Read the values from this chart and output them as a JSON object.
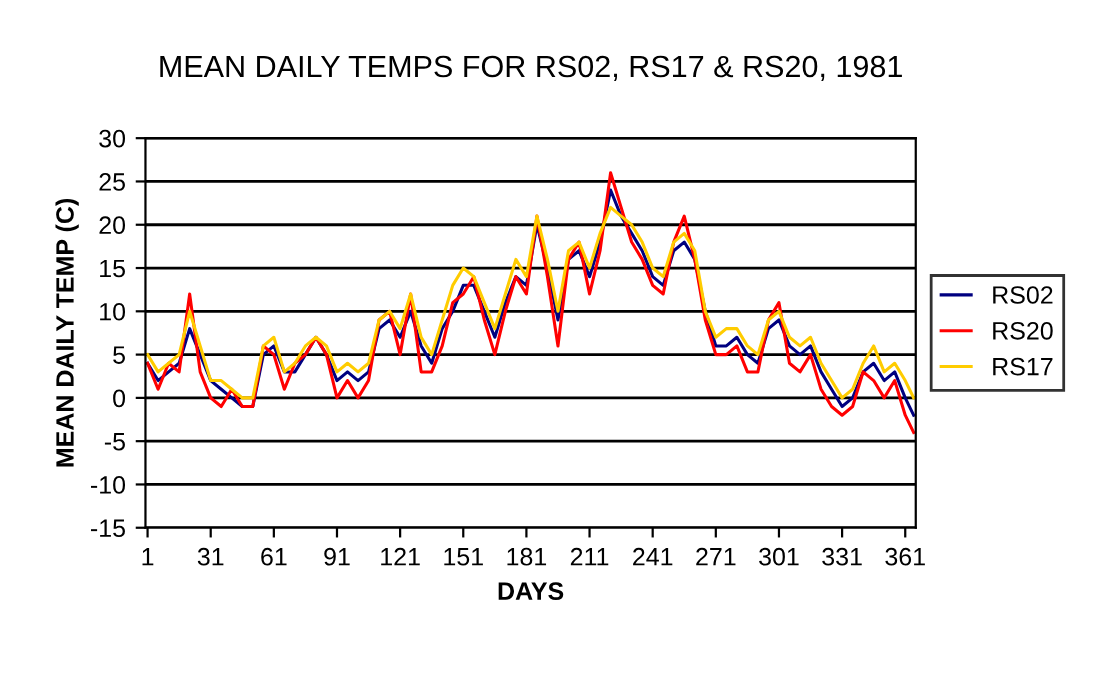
{
  "chart_data": {
    "type": "line",
    "title": "MEAN DAILY TEMPS FOR RS02, RS17 & RS20, 1981",
    "xlabel": "DAYS",
    "ylabel": "MEAN DAILY TEMP (C)",
    "x": [
      1,
      6,
      11,
      16,
      21,
      26,
      31,
      36,
      41,
      46,
      51,
      56,
      61,
      66,
      71,
      76,
      81,
      86,
      91,
      96,
      101,
      106,
      111,
      116,
      121,
      126,
      131,
      136,
      141,
      146,
      151,
      156,
      161,
      166,
      171,
      176,
      181,
      186,
      191,
      196,
      201,
      206,
      211,
      216,
      221,
      226,
      231,
      236,
      241,
      246,
      251,
      256,
      261,
      266,
      271,
      276,
      281,
      286,
      291,
      296,
      301,
      306,
      311,
      316,
      321,
      326,
      331,
      336,
      341,
      346,
      351,
      356,
      361,
      365
    ],
    "series": [
      {
        "name": "RS02",
        "color": "#000080",
        "values": [
          4,
          2,
          3,
          4,
          8,
          5,
          2,
          1,
          0,
          -1,
          -1,
          5,
          6,
          3,
          3,
          5,
          7,
          5,
          2,
          3,
          2,
          3,
          8,
          9,
          7,
          10,
          6,
          4,
          8,
          10,
          13,
          13,
          10,
          7,
          11,
          14,
          13,
          20,
          15,
          9,
          16,
          17,
          14,
          18,
          24,
          21,
          19,
          17,
          14,
          13,
          17,
          18,
          16,
          10,
          6,
          6,
          7,
          5,
          4,
          8,
          9,
          6,
          5,
          6,
          3,
          1,
          -1,
          0,
          3,
          4,
          2,
          3,
          0,
          -2
        ]
      },
      {
        "name": "RS20",
        "color": "#ff0000",
        "values": [
          4,
          1,
          4,
          3,
          12,
          3,
          0,
          -1,
          1,
          -1,
          -1,
          6,
          5,
          1,
          4,
          5,
          7,
          5,
          0,
          2,
          0,
          2,
          9,
          10,
          5,
          12,
          3,
          3,
          6,
          11,
          12,
          14,
          9,
          5,
          10,
          14,
          12,
          21,
          14,
          6,
          16,
          18,
          12,
          17,
          26,
          22,
          18,
          16,
          13,
          12,
          18,
          21,
          16,
          9,
          5,
          5,
          6,
          3,
          3,
          9,
          11,
          4,
          3,
          5,
          1,
          -1,
          -2,
          -1,
          3,
          2,
          0,
          2,
          -2,
          -4
        ]
      },
      {
        "name": "RS17",
        "color": "#ffcc00",
        "values": [
          5,
          3,
          4,
          5,
          10,
          6,
          2,
          2,
          1,
          0,
          0,
          6,
          7,
          3,
          4,
          6,
          7,
          6,
          3,
          4,
          3,
          4,
          9,
          10,
          8,
          12,
          7,
          5,
          9,
          13,
          15,
          14,
          11,
          8,
          12,
          16,
          14,
          21,
          16,
          10,
          17,
          18,
          15,
          19,
          22,
          21,
          20,
          18,
          15,
          14,
          18,
          19,
          17,
          10,
          7,
          8,
          8,
          6,
          5,
          9,
          10,
          7,
          6,
          7,
          4,
          2,
          0,
          1,
          4,
          6,
          3,
          4,
          2,
          0
        ]
      }
    ],
    "xlim": [
      0,
      366
    ],
    "xticks": [
      1,
      31,
      61,
      91,
      121,
      151,
      181,
      211,
      241,
      271,
      301,
      331,
      361
    ],
    "ylim": [
      -15,
      30
    ],
    "yticks": [
      -15,
      -10,
      -5,
      0,
      5,
      10,
      15,
      20,
      25,
      30
    ],
    "grid": "y",
    "legend": "right",
    "marker": "none",
    "line_style": "solid"
  }
}
